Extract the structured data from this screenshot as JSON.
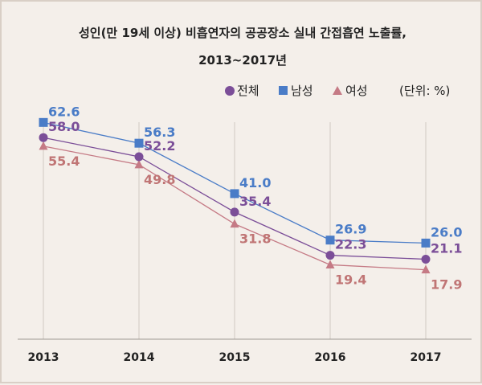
{
  "chart_data": {
    "type": "line",
    "title": "성인(만 19세 이상) 비흡연자의 공공장소 실내 간접흡연 노출률,",
    "subtitle": "2013~2017년",
    "unit_label": "(단위: %)",
    "x": [
      "2013",
      "2014",
      "2015",
      "2016",
      "2017"
    ],
    "ylim": [
      0,
      70
    ],
    "grid": "vertical",
    "legend_position": "top-right",
    "series": [
      {
        "name": "전체",
        "marker": "circle",
        "color": "#7b4e98",
        "label_color": "#7b4e98",
        "values": [
          58.0,
          52.2,
          35.4,
          22.3,
          21.1
        ]
      },
      {
        "name": "남성",
        "marker": "square",
        "color": "#4a7cc7",
        "label_color": "#4a7cc7",
        "values": [
          62.6,
          56.3,
          41.0,
          26.9,
          26.0
        ]
      },
      {
        "name": "여성",
        "marker": "triangle",
        "color": "#c57a85",
        "label_color": "#c07575",
        "values": [
          55.4,
          49.8,
          31.8,
          19.4,
          17.9
        ]
      }
    ]
  },
  "labels": {
    "values": [
      [
        "58.0",
        "52.2",
        "35.4",
        "22.3",
        "21.1"
      ],
      [
        "62.6",
        "56.3",
        "41.0",
        "26.9",
        "26.0"
      ],
      [
        "55.4",
        "49.8",
        "31.8",
        "19.4",
        "17.9"
      ]
    ]
  }
}
